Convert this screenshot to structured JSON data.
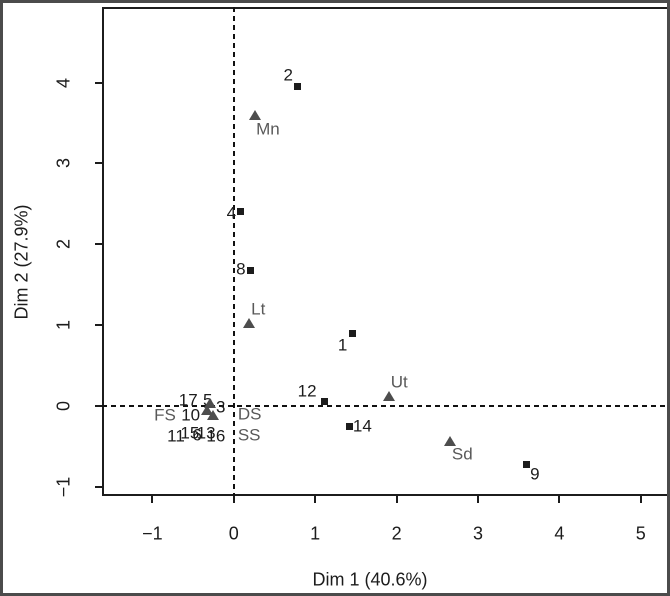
{
  "chart_data": {
    "type": "scatter",
    "title": "",
    "xlabel": "Dim 1 (40.6%)",
    "ylabel": "Dim 2 (27.9%)",
    "xlim": [
      -1.62,
      5.36
    ],
    "ylim": [
      -1.1,
      4.94
    ],
    "x_ticks": [
      "-1",
      "0",
      "1",
      "2",
      "3",
      "4",
      "5"
    ],
    "x_tick_values": [
      -1,
      0,
      1,
      2,
      3,
      4,
      5
    ],
    "y_ticks": [
      "-1",
      "0",
      "1",
      "2",
      "3",
      "4"
    ],
    "y_tick_values": [
      -1,
      0,
      1,
      2,
      3,
      4
    ],
    "grid": false,
    "legend": "none",
    "reference_lines": {
      "vline_x": 0,
      "hline_y": 0
    },
    "colors": {
      "site_marker": "#1c1c1c",
      "site_label": "#1c1c1c",
      "variable_marker": "#4d4d4d",
      "variable_label": "#595959"
    },
    "series": [
      {
        "name": "sites",
        "marker": "square",
        "points": [
          {
            "label": "2",
            "x": 0.78,
            "y": 3.95,
            "dx": -9,
            "dy": -12
          },
          {
            "label": "4",
            "x": 0.08,
            "y": 2.4,
            "dx": -9,
            "dy": 1
          },
          {
            "label": "8",
            "x": 0.21,
            "y": 1.68,
            "dx": -10,
            "dy": -1
          },
          {
            "label": "1",
            "x": 1.46,
            "y": 0.9,
            "dx": -10,
            "dy": 12
          },
          {
            "label": "12",
            "x": 1.11,
            "y": 0.05,
            "dx": -17,
            "dy": -11
          },
          {
            "label": "14",
            "x": 1.42,
            "y": -0.25,
            "dx": 13,
            "dy": 0
          },
          {
            "label": "9",
            "x": 3.6,
            "y": -0.73,
            "dx": 8,
            "dy": 9
          },
          {
            "label": "17",
            "x": -0.56,
            "y": 0.07,
            "marker": false
          },
          {
            "label": "5",
            "x": -0.32,
            "y": 0.07,
            "marker": false
          },
          {
            "label": "10",
            "x": -0.53,
            "y": -0.11,
            "marker": false
          },
          {
            "label": "3",
            "x": -0.16,
            "y": -0.01,
            "marker": false
          },
          {
            "label": "11",
            "x": -0.71,
            "y": -0.37,
            "marker": false
          },
          {
            "label": "15",
            "x": -0.54,
            "y": -0.34,
            "marker": false
          },
          {
            "label": "6",
            "x": -0.45,
            "y": -0.36,
            "marker": false
          },
          {
            "label": "13",
            "x": -0.34,
            "y": -0.34,
            "marker": false
          },
          {
            "label": "16",
            "x": -0.22,
            "y": -0.37,
            "marker": false
          }
        ]
      },
      {
        "name": "variables",
        "marker": "triangle",
        "points": [
          {
            "label": "Mn",
            "x": 0.26,
            "y": 3.6,
            "dx": 13,
            "dy": 14
          },
          {
            "label": "Lt",
            "x": 0.19,
            "y": 1.02,
            "dx": 9,
            "dy": -14
          },
          {
            "label": "Ut",
            "x": 1.91,
            "y": 0.12,
            "dx": 10,
            "dy": -14
          },
          {
            "label": "Sd",
            "x": 2.66,
            "y": -0.44,
            "dx": 12,
            "dy": 13
          },
          {
            "label": "FS",
            "x": -0.33,
            "y": -0.05,
            "dx": -42,
            "dy": 5
          },
          {
            "label": "DS",
            "x": -0.26,
            "y": -0.11,
            "dx": 37,
            "dy": -1
          },
          {
            "label": "SS",
            "x": -0.29,
            "y": 0.03,
            "dx": 39,
            "dy": 32
          }
        ]
      }
    ]
  }
}
